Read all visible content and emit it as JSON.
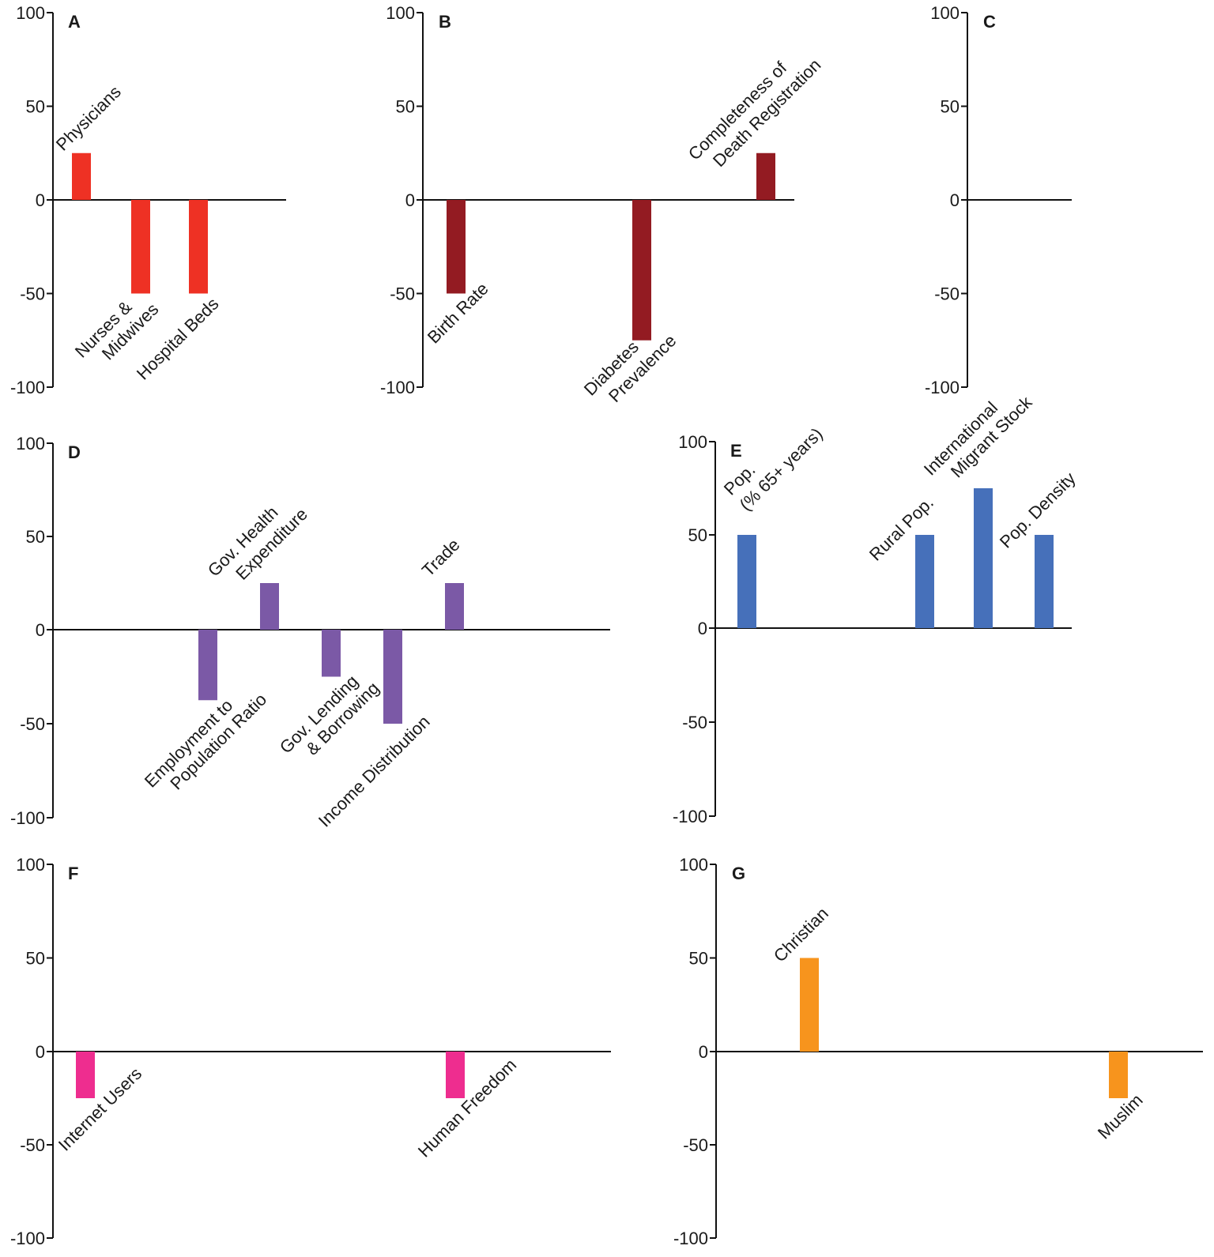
{
  "chart_data": [
    {
      "type": "bar",
      "panel": "A",
      "color": "#EE3124",
      "ylim": [
        -100,
        100
      ],
      "yticks": [
        100,
        50,
        0,
        -50,
        -100
      ],
      "categories": [
        "Physicians",
        "Nurses & Midwives",
        "Hospital Beds"
      ],
      "values": [
        25,
        -50,
        -50
      ]
    },
    {
      "type": "bar",
      "panel": "B",
      "color": "#931B22",
      "ylim": [
        -100,
        100
      ],
      "yticks": [
        100,
        50,
        0,
        -50,
        -100
      ],
      "categories": [
        "Birth Rate",
        "Diabetes Prevalence",
        "Completeness of Death Registration"
      ],
      "values": [
        -50,
        -75,
        25
      ]
    },
    {
      "type": "bar",
      "panel": "C",
      "color": "#000000",
      "ylim": [
        -100,
        100
      ],
      "yticks": [
        100,
        50,
        0,
        -50,
        -100
      ],
      "categories": [],
      "values": []
    },
    {
      "type": "bar",
      "panel": "D",
      "color": "#7B59A6",
      "ylim": [
        -100,
        100
      ],
      "yticks": [
        100,
        50,
        0,
        -50,
        -100
      ],
      "categories": [
        "Employment to Population Ratio",
        "Gov. Health Expenditure",
        "Gov. Lending & Borrowing",
        "Income Distribution",
        "Trade"
      ],
      "values": [
        -37.5,
        25,
        -25,
        -50,
        25
      ]
    },
    {
      "type": "bar",
      "panel": "E",
      "color": "#4670BA",
      "ylim": [
        -100,
        100
      ],
      "yticks": [
        100,
        50,
        0,
        -50,
        -100
      ],
      "categories": [
        "Pop. (% 65+ years)",
        "Rural Pop.",
        "International Migrant Stock",
        "Pop. Density"
      ],
      "values": [
        50,
        50,
        75,
        50
      ]
    },
    {
      "type": "bar",
      "panel": "F",
      "color": "#EE2D8F",
      "ylim": [
        -100,
        100
      ],
      "yticks": [
        100,
        50,
        0,
        -50,
        -100
      ],
      "categories": [
        "Internet Users",
        "Human Freedom"
      ],
      "values": [
        -25,
        -25
      ]
    },
    {
      "type": "bar",
      "panel": "G",
      "color": "#F7941D",
      "ylim": [
        -100,
        100
      ],
      "yticks": [
        100,
        50,
        0,
        -50,
        -100
      ],
      "categories": [
        "Christian",
        "Muslim"
      ],
      "values": [
        50,
        -25
      ]
    }
  ]
}
